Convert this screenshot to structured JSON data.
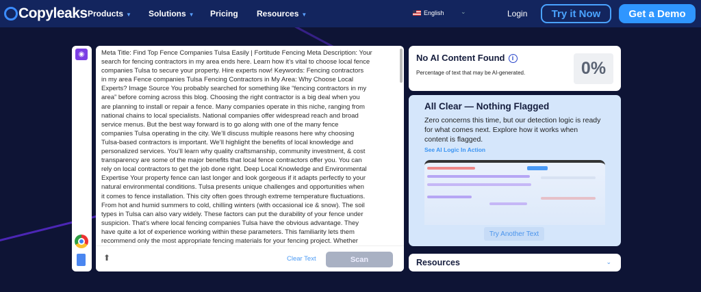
{
  "header": {
    "logo": "Copyleaks",
    "nav": [
      {
        "label": "Products",
        "caret": true
      },
      {
        "label": "Solutions",
        "caret": true
      },
      {
        "label": "Pricing",
        "caret": false
      },
      {
        "label": "Resources",
        "caret": true
      }
    ],
    "language": "English",
    "login": "Login",
    "try_label": "Try it Now",
    "demo_label": "Get a Demo"
  },
  "sidebar": {
    "icons": [
      "eye-icon",
      "chrome-icon",
      "google-docs-icon"
    ]
  },
  "editor": {
    "lines": [
      "Meta Title: Find Top Fence Companies Tulsa Easily | Fortitude Fencing Meta Description: Your",
      "search for fencing contractors in my area ends here. Learn how it’s vital to choose local fence",
      "companies Tulsa to secure your property. Hire experts now! Keywords: Fencing contractors",
      "in my area Fence companies Tulsa Fencing Contractors in My Area: Why Choose Local",
      "Experts? Image Source You probably searched for something like “fencing contractors in my",
      "area” before coming across this blog. Choosing the right contractor is a big deal when you",
      "are planning to install or repair a fence. Many companies operate in this niche, ranging from",
      "national chains to local specialists. National companies offer widespread reach and broad",
      "service menus. But the best way forward is to go along with one of the many fence",
      "companies Tulsa operating in the city. We’ll discuss multiple reasons here why choosing",
      "Tulsa-based contractors is important. We’ll highlight the benefits of local knowledge and",
      "personalized services. You’ll learn why quality craftsmanship, community investment, & cost",
      "transparency are some of the major benefits that local fence contractors offer you. You can",
      "rely on local contractors to get the job done right. Deep Local Knowledge and Environmental",
      "Expertise Your property fence can last longer and look gorgeous if it adapts perfectly to your",
      "natural environmental conditions. Tulsa presents unique challenges and opportunities when",
      "it comes to fence installation. This city often goes through extreme temperature fluctuations.",
      "From hot and humid summers to cold, chilling winters (with occasional ice & snow). The soil",
      "types in Tulsa can also vary widely. These factors can put the durability of your fence under",
      "suspicion. That’s where local fencing companies Tulsa have the obvious advantage. They",
      "have quite a lot of experience working within these parameters. This familiarity lets them",
      "recommend only the most appropriate fencing materials for your fencing project. Whether"
    ],
    "clear_label": "Clear Text",
    "scan_label": "Scan"
  },
  "result": {
    "title": "No AI Content Found",
    "subtitle": "Percentage of text that may be AI-generated.",
    "percent": "0%"
  },
  "clear_card": {
    "title": "All Clear — Nothing Flagged",
    "description": "Zero concerns this time, but our detection logic is ready for what comes next. Explore how it works when content is flagged.",
    "link": "See AI Logic In Action",
    "button": "Try Another Text"
  },
  "resources": {
    "title": "Resources"
  },
  "colors": {
    "header": "#13255e",
    "background": "#0e1435",
    "accent": "#2f96ff",
    "purple": "#7b3fe4"
  }
}
